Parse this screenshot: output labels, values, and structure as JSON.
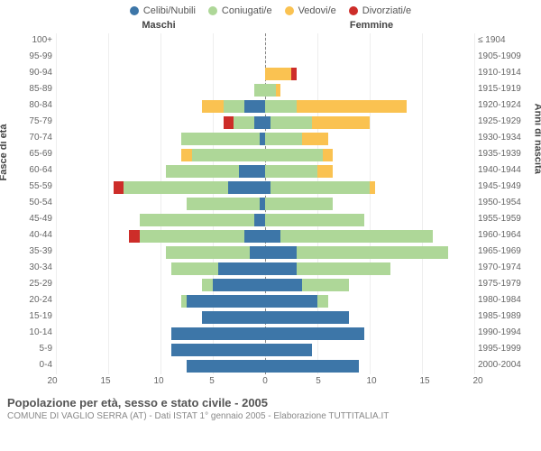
{
  "legend": [
    {
      "label": "Celibi/Nubili",
      "color": "#3d76a8"
    },
    {
      "label": "Coniugati/e",
      "color": "#aed798"
    },
    {
      "label": "Vedovi/e",
      "color": "#fac251"
    },
    {
      "label": "Divorziati/e",
      "color": "#cd2d29"
    }
  ],
  "header_male": "Maschi",
  "header_female": "Femmine",
  "axis_left_title": "Fasce di età",
  "axis_right_title": "Anni di nascita",
  "x_max": 20,
  "x_ticks": [
    20,
    15,
    10,
    5,
    0,
    5,
    10,
    15,
    20
  ],
  "colors": {
    "celibi": "#3d76a8",
    "coniugati": "#aed798",
    "vedovi": "#fac251",
    "divorziati": "#cd2d29",
    "grid": "#eeeeee",
    "center": "#888888"
  },
  "groups": [
    {
      "age": "100+",
      "birth": "≤ 1904",
      "m": {
        "c": 0,
        "co": 0,
        "v": 0,
        "d": 0
      },
      "f": {
        "c": 0,
        "co": 0,
        "v": 0,
        "d": 0
      }
    },
    {
      "age": "95-99",
      "birth": "1905-1909",
      "m": {
        "c": 0,
        "co": 0,
        "v": 0,
        "d": 0
      },
      "f": {
        "c": 0,
        "co": 0,
        "v": 0,
        "d": 0
      }
    },
    {
      "age": "90-94",
      "birth": "1910-1914",
      "m": {
        "c": 0,
        "co": 0,
        "v": 0,
        "d": 0
      },
      "f": {
        "c": 0,
        "co": 0,
        "v": 2.5,
        "d": 0.5
      }
    },
    {
      "age": "85-89",
      "birth": "1915-1919",
      "m": {
        "c": 0,
        "co": 1,
        "v": 0,
        "d": 0
      },
      "f": {
        "c": 0,
        "co": 1,
        "v": 0.5,
        "d": 0
      }
    },
    {
      "age": "80-84",
      "birth": "1920-1924",
      "m": {
        "c": 2,
        "co": 2,
        "v": 2,
        "d": 0
      },
      "f": {
        "c": 0,
        "co": 3,
        "v": 10.5,
        "d": 0
      }
    },
    {
      "age": "75-79",
      "birth": "1925-1929",
      "m": {
        "c": 1,
        "co": 2,
        "v": 0,
        "d": 1
      },
      "f": {
        "c": 0.5,
        "co": 4,
        "v": 5.5,
        "d": 0
      }
    },
    {
      "age": "70-74",
      "birth": "1930-1934",
      "m": {
        "c": 0.5,
        "co": 7.5,
        "v": 0,
        "d": 0
      },
      "f": {
        "c": 0,
        "co": 3.5,
        "v": 2.5,
        "d": 0
      }
    },
    {
      "age": "65-69",
      "birth": "1935-1939",
      "m": {
        "c": 0,
        "co": 7,
        "v": 1,
        "d": 0
      },
      "f": {
        "c": 0,
        "co": 5.5,
        "v": 1,
        "d": 0
      }
    },
    {
      "age": "60-64",
      "birth": "1940-1944",
      "m": {
        "c": 2.5,
        "co": 7,
        "v": 0,
        "d": 0
      },
      "f": {
        "c": 0,
        "co": 5,
        "v": 1.5,
        "d": 0
      }
    },
    {
      "age": "55-59",
      "birth": "1945-1949",
      "m": {
        "c": 3.5,
        "co": 10,
        "v": 0,
        "d": 1
      },
      "f": {
        "c": 0.5,
        "co": 9.5,
        "v": 0.5,
        "d": 0
      }
    },
    {
      "age": "50-54",
      "birth": "1950-1954",
      "m": {
        "c": 0.5,
        "co": 7,
        "v": 0,
        "d": 0
      },
      "f": {
        "c": 0,
        "co": 6.5,
        "v": 0,
        "d": 0
      }
    },
    {
      "age": "45-49",
      "birth": "1955-1959",
      "m": {
        "c": 1,
        "co": 11,
        "v": 0,
        "d": 0
      },
      "f": {
        "c": 0,
        "co": 9.5,
        "v": 0,
        "d": 0
      }
    },
    {
      "age": "40-44",
      "birth": "1960-1964",
      "m": {
        "c": 2,
        "co": 10,
        "v": 0,
        "d": 1
      },
      "f": {
        "c": 1.5,
        "co": 14.5,
        "v": 0,
        "d": 0
      }
    },
    {
      "age": "35-39",
      "birth": "1965-1969",
      "m": {
        "c": 1.5,
        "co": 8,
        "v": 0,
        "d": 0
      },
      "f": {
        "c": 3,
        "co": 14.5,
        "v": 0,
        "d": 0
      }
    },
    {
      "age": "30-34",
      "birth": "1970-1974",
      "m": {
        "c": 4.5,
        "co": 4.5,
        "v": 0,
        "d": 0
      },
      "f": {
        "c": 3,
        "co": 9,
        "v": 0,
        "d": 0
      }
    },
    {
      "age": "25-29",
      "birth": "1975-1979",
      "m": {
        "c": 5,
        "co": 1,
        "v": 0,
        "d": 0
      },
      "f": {
        "c": 3.5,
        "co": 4.5,
        "v": 0,
        "d": 0
      }
    },
    {
      "age": "20-24",
      "birth": "1980-1984",
      "m": {
        "c": 7.5,
        "co": 0.5,
        "v": 0,
        "d": 0
      },
      "f": {
        "c": 5,
        "co": 1,
        "v": 0,
        "d": 0
      }
    },
    {
      "age": "15-19",
      "birth": "1985-1989",
      "m": {
        "c": 6,
        "co": 0,
        "v": 0,
        "d": 0
      },
      "f": {
        "c": 8,
        "co": 0,
        "v": 0,
        "d": 0
      }
    },
    {
      "age": "10-14",
      "birth": "1990-1994",
      "m": {
        "c": 9,
        "co": 0,
        "v": 0,
        "d": 0
      },
      "f": {
        "c": 9.5,
        "co": 0,
        "v": 0,
        "d": 0
      }
    },
    {
      "age": "5-9",
      "birth": "1995-1999",
      "m": {
        "c": 9,
        "co": 0,
        "v": 0,
        "d": 0
      },
      "f": {
        "c": 4.5,
        "co": 0,
        "v": 0,
        "d": 0
      }
    },
    {
      "age": "0-4",
      "birth": "2000-2004",
      "m": {
        "c": 7.5,
        "co": 0,
        "v": 0,
        "d": 0
      },
      "f": {
        "c": 9,
        "co": 0,
        "v": 0,
        "d": 0
      }
    }
  ],
  "footer": {
    "title": "Popolazione per età, sesso e stato civile - 2005",
    "sub": "COMUNE DI VAGLIO SERRA (AT) - Dati ISTAT 1° gennaio 2005 - Elaborazione TUTTITALIA.IT"
  }
}
